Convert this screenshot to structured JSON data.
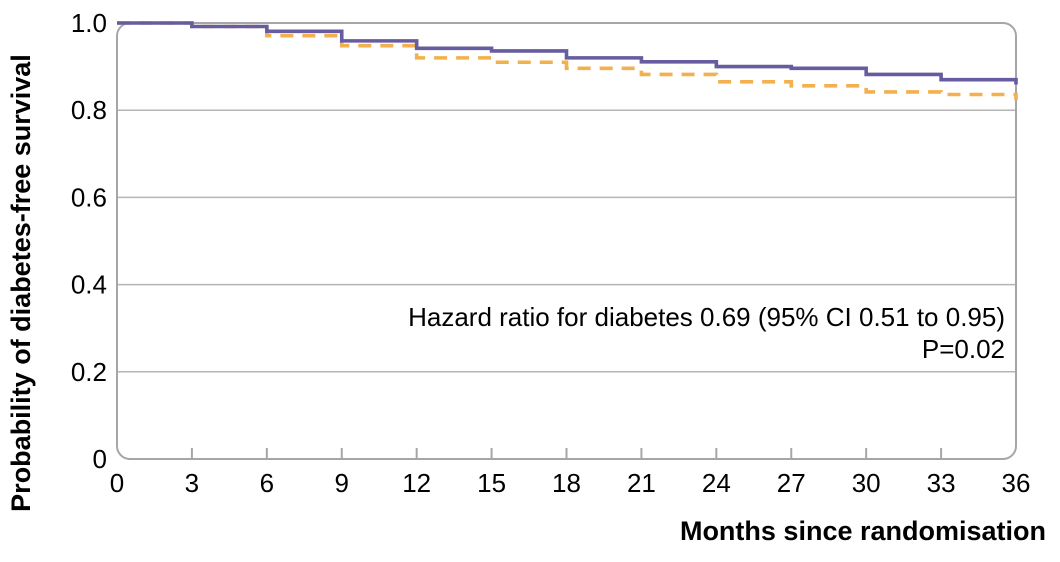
{
  "chart_data": {
    "type": "line",
    "subtype": "kaplan-meier-step-curves",
    "title": "",
    "xlabel": "Months since randomisation",
    "ylabel": "Probability of diabetes-free survival",
    "xlim": [
      0,
      36
    ],
    "ylim": [
      0,
      1.0
    ],
    "xticks": [
      0,
      3,
      6,
      9,
      12,
      15,
      18,
      21,
      24,
      27,
      30,
      33,
      36
    ],
    "yticks": [
      {
        "v": 0,
        "label": "0"
      },
      {
        "v": 0.2,
        "label": "0.2"
      },
      {
        "v": 0.4,
        "label": "0.4"
      },
      {
        "v": 0.6,
        "label": "0.6"
      },
      {
        "v": 0.8,
        "label": "0.8"
      },
      {
        "v": 1.0,
        "label": "1.0"
      }
    ],
    "grid": "horizontal-gridlines-only",
    "legend": "none",
    "annotation": {
      "line1": "Hazard ratio for diabetes 0.69 (95% CI 0.51 to 0.95)",
      "line2": "P=0.02"
    },
    "series": [
      {
        "name": "dashed-orange-curve",
        "style": "dashed",
        "color": "#f2b04e",
        "steps": [
          [
            0,
            1.0
          ],
          [
            3,
            0.992
          ],
          [
            6,
            0.971
          ],
          [
            9,
            0.948
          ],
          [
            12,
            0.92
          ],
          [
            15,
            0.91
          ],
          [
            18,
            0.896
          ],
          [
            21,
            0.882
          ],
          [
            24,
            0.865
          ],
          [
            27,
            0.856
          ],
          [
            30,
            0.842
          ],
          [
            33,
            0.836
          ],
          [
            36,
            0.823
          ]
        ]
      },
      {
        "name": "solid-purple-curve",
        "style": "solid",
        "color": "#665c9f",
        "steps": [
          [
            0,
            1.0
          ],
          [
            3,
            0.992
          ],
          [
            6,
            0.981
          ],
          [
            9,
            0.959
          ],
          [
            12,
            0.942
          ],
          [
            15,
            0.936
          ],
          [
            18,
            0.92
          ],
          [
            21,
            0.911
          ],
          [
            24,
            0.9
          ],
          [
            27,
            0.896
          ],
          [
            30,
            0.882
          ],
          [
            33,
            0.87
          ],
          [
            36,
            0.859
          ]
        ]
      }
    ],
    "colors": {
      "frame": "#a6a6a6",
      "gridline": "#b4b4b4",
      "tick": "#a6a6a6",
      "text": "#000000",
      "background": "#ffffff"
    }
  }
}
